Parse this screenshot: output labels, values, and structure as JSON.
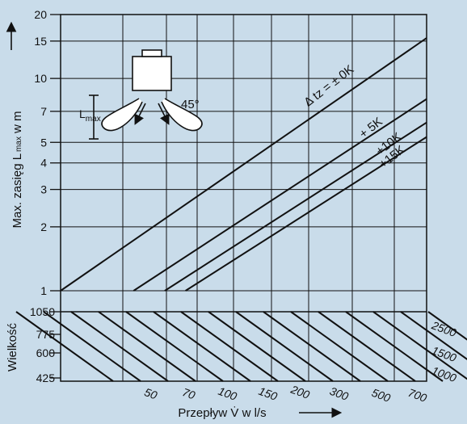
{
  "chart_data": {
    "type": "line",
    "xlabel": "Przepływ V̇ w l/s",
    "ylabel_main": "Max. zasięg L",
    "ylabel_sub": "max",
    "ylabel_tail": "w m",
    "lower_ylabel": "Wielkość",
    "y_axis": {
      "scale": "log",
      "ylim": [
        1,
        20
      ],
      "ticks": [
        "1",
        "2",
        "3",
        "4",
        "5",
        "7",
        "10",
        "15",
        "20"
      ]
    },
    "size_axis": {
      "ticks": [
        "1050",
        "775",
        "600",
        "425"
      ]
    },
    "flow_ticks": [
      "50",
      "70",
      "100",
      "150",
      "200",
      "300",
      "500",
      "700",
      "1000",
      "1500",
      "2500"
    ],
    "series": [
      {
        "name": "Δ tz = ± 0K",
        "flow": [
          100,
          2500
        ],
        "lmax": [
          1.0,
          15.5
        ]
      },
      {
        "name": "+ 5K",
        "flow": [
          190,
          2500
        ],
        "lmax": [
          1.0,
          8.0
        ]
      },
      {
        "name": "+10K",
        "flow": [
          250,
          2500
        ],
        "lmax": [
          1.0,
          6.2
        ]
      },
      {
        "name": "+15K",
        "flow": [
          300,
          2500
        ],
        "lmax": [
          1.0,
          5.3
        ]
      }
    ],
    "grid": true,
    "inset": {
      "angle_label": "45°",
      "length_label": "L",
      "length_sub": "max"
    }
  }
}
